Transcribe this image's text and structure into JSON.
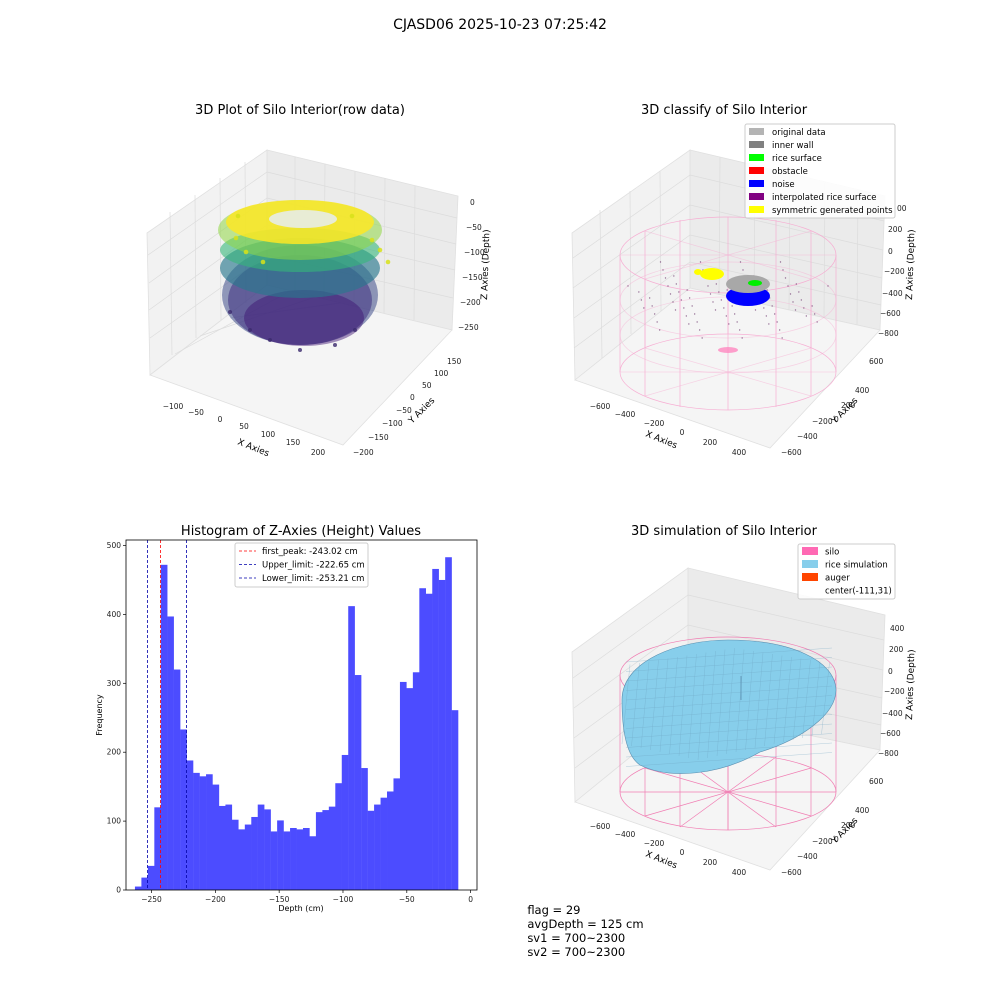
{
  "figure": {
    "suptitle": "CJASD06 2025-10-23 07:25:42"
  },
  "panels": {
    "raw": {
      "title": "3D Plot of Silo Interior(row data)",
      "x_label": "X Axies",
      "y_label": "Y Axies",
      "z_label": "Z Axies (Depth)",
      "x_ticks": [
        "−100",
        "−50",
        "0",
        "50",
        "100",
        "150",
        "200"
      ],
      "y_ticks": [
        "150",
        "100",
        "50",
        "0",
        "−50",
        "−100",
        "−150",
        "−200"
      ],
      "z_ticks": [
        "0",
        "−50",
        "−100",
        "−150",
        "−200",
        "−250"
      ]
    },
    "classify": {
      "title": "3D classify of Silo Interior",
      "x_label": "X Axies",
      "y_label": "Y Axies",
      "z_label": "Z Axies (Depth)",
      "x_ticks": [
        "−600",
        "−400",
        "−200",
        "0",
        "200",
        "400"
      ],
      "y_ticks": [
        "600",
        "400",
        "200",
        "0",
        "−200",
        "−400",
        "−600"
      ],
      "z_ticks": [
        "200",
        "0",
        "−200",
        "−400",
        "−600",
        "−800"
      ],
      "z_top_partial": "00",
      "legend": [
        {
          "label": "original data",
          "color": "#b4b4b4"
        },
        {
          "label": "inner wall",
          "color": "#808080"
        },
        {
          "label": "rice surface",
          "color": "#00ff00"
        },
        {
          "label": "obstacle",
          "color": "#ff0000"
        },
        {
          "label": "noise",
          "color": "#0000ff"
        },
        {
          "label": "interpolated rice surface",
          "color": "#800080"
        },
        {
          "label": "symmetric generated points",
          "color": "#ffff00"
        }
      ]
    },
    "simulation": {
      "title": "3D simulation of Silo Interior",
      "x_label": "X Axies",
      "y_label": "Y Axies",
      "z_label": "Z Axies (Depth)",
      "x_ticks": [
        "−600",
        "−400",
        "−200",
        "0",
        "200",
        "400"
      ],
      "y_ticks": [
        "600",
        "400",
        "200",
        "0",
        "−200",
        "−400",
        "−600"
      ],
      "z_ticks": [
        "400",
        "200",
        "0",
        "−200",
        "−400",
        "−600",
        "−800"
      ],
      "legend": [
        {
          "label": "silo",
          "color": "#ff69b4"
        },
        {
          "label": "rice simulation",
          "color": "#87ceeb"
        },
        {
          "label": "auger",
          "color": "#ff4500"
        },
        {
          "label": "center(-111,31)",
          "color": ""
        }
      ]
    }
  },
  "chart_data": [
    {
      "type": "bar",
      "title": "Histogram of Z-Axies (Height) Values",
      "xlabel": "Depth (cm)",
      "ylabel": "Frequency",
      "xlim": [
        -270,
        5
      ],
      "ylim": [
        0,
        508
      ],
      "x_ticks": [
        -250,
        -200,
        -150,
        -100,
        -50,
        0
      ],
      "y_ticks": [
        0,
        100,
        200,
        300,
        400,
        500
      ],
      "bar_color": "#4c4cff",
      "bin_left": -263.0,
      "bin_width": 5.064,
      "values": [
        5,
        18,
        35,
        120,
        472,
        397,
        320,
        233,
        188,
        170,
        165,
        168,
        153,
        122,
        124,
        102,
        88,
        95,
        106,
        124,
        117,
        85,
        101,
        85,
        90,
        88,
        90,
        78,
        113,
        116,
        121,
        155,
        196,
        412,
        312,
        177,
        115,
        124,
        134,
        143,
        162,
        302,
        293,
        316,
        438,
        430,
        466,
        450,
        483,
        261
      ],
      "vlines": [
        {
          "label": "first_peak: -243.02 cm",
          "x": -243.02,
          "color": "#ff0000"
        },
        {
          "label": "Upper_limit: -222.65 cm",
          "x": -222.65,
          "color": "#0000aa"
        },
        {
          "label": "Lower_limit: -253.21 cm",
          "x": -253.21,
          "color": "#0000aa"
        }
      ],
      "legend_position": "top-center",
      "grid": false
    }
  ],
  "status": {
    "flag": "flag = 29",
    "avg_depth": "avgDepth = 125 cm",
    "sv1": "sv1 = 700~2300",
    "sv2": "sv2 = 700~2300"
  }
}
